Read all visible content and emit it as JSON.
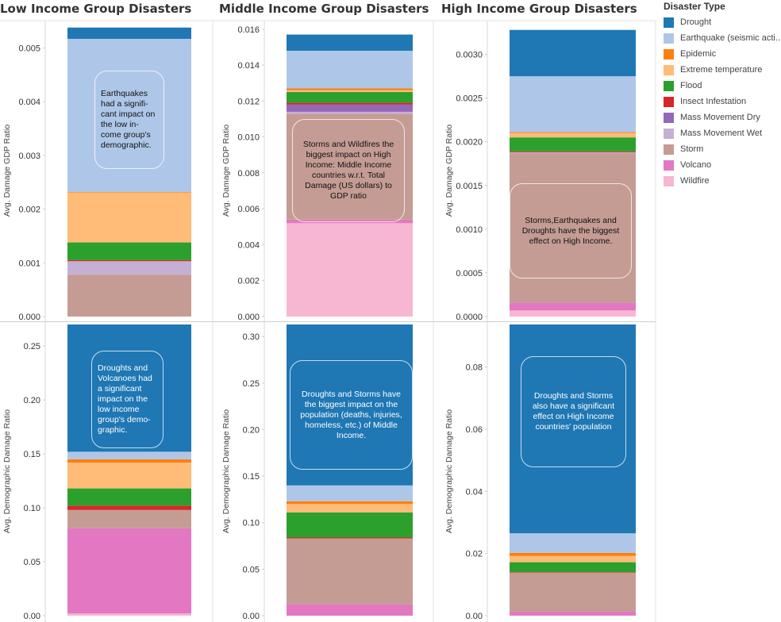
{
  "colors": {
    "Drought": "#1f77b4",
    "Earthquake (seismic acti..": "#aec7e8",
    "Epidemic": "#ff7f0e",
    "Extreme temperature": "#ffbb78",
    "Flood": "#2ca02c",
    "Insect Infestation": "#d62728",
    "Mass Movement Dry": "#9467bd",
    "Mass Movement Wet": "#c5b0d5",
    "Storm": "#c49c94",
    "Volcano": "#e377c2",
    "Wildfire": "#f7b6d2"
  },
  "legend": {
    "title": "Disaster Type",
    "items": [
      "Drought",
      "Earthquake (seismic acti..",
      "Epidemic",
      "Extreme temperature",
      "Flood",
      "Insect Infestation",
      "Mass Movement Dry",
      "Mass Movement Wet",
      "Storm",
      "Volcano",
      "Wildfire"
    ]
  },
  "columns": [
    "Low Income Group Disasters",
    "Middle Income Group Disasters",
    "High Income Group Disasters"
  ],
  "row_labels": [
    "Avg. Damage GDP Ratio",
    "Avg. Demographic Damage Ratio"
  ],
  "annotations": [
    "Earthquakes had a signifi- cant impact on the low in- come group's demographic.",
    "Storms and Wildfires the biggest impact on High Income: Middle Income countries w.r.t. Total Damage (US dollars) to GDP ratio",
    "Storms,Earthquakes and Droughts have the biggest effect on High Income.",
    "Droughts and Volcanoes had a significant impact on the low income group's demo- graphic.",
    "Droughts and Storms have the biggest impact on the population (deaths, injuries, homeless, etc.) of Middle Income.",
    "Droughts  and Storms also have a significant effect on High Income countries' population"
  ],
  "chart_data": [
    {
      "type": "bar",
      "stacked": true,
      "title": "Low Income Group Disasters",
      "ylabel": "Avg. Damage GDP Ratio",
      "ylim": [
        0,
        0.00545
      ],
      "yticks": [
        "0.000",
        "0.001",
        "0.002",
        "0.003",
        "0.004",
        "0.005"
      ],
      "series": [
        {
          "name": "Storm",
          "value": 0.00078
        },
        {
          "name": "Mass Movement Wet",
          "value": 0.00025
        },
        {
          "name": "Insect Infestation",
          "value": 2e-05
        },
        {
          "name": "Flood",
          "value": 0.00033
        },
        {
          "name": "Extreme temperature",
          "value": 0.00093
        },
        {
          "name": "Epidemic",
          "value": 1e-05
        },
        {
          "name": "Earthquake (seismic acti..",
          "value": 0.00285
        },
        {
          "name": "Drought",
          "value": 0.00021
        }
      ]
    },
    {
      "type": "bar",
      "stacked": true,
      "title": "Middle Income Group Disasters",
      "ylabel": "Avg. Damage GDP Ratio",
      "ylim": [
        0,
        0.0163
      ],
      "yticks": [
        "0.000",
        "0.002",
        "0.004",
        "0.006",
        "0.008",
        "0.010",
        "0.012",
        "0.014",
        "0.016"
      ],
      "series": [
        {
          "name": "Wildfire",
          "value": 0.0052
        },
        {
          "name": "Volcano",
          "value": 0.0002
        },
        {
          "name": "Storm",
          "value": 0.0059
        },
        {
          "name": "Mass Movement Wet",
          "value": 0.0001
        },
        {
          "name": "Mass Movement Dry",
          "value": 0.0004
        },
        {
          "name": "Insect Infestation",
          "value": 0.0001
        },
        {
          "name": "Flood",
          "value": 0.0006
        },
        {
          "name": "Extreme temperature",
          "value": 0.0001
        },
        {
          "name": "Epidemic",
          "value": 0.0001
        },
        {
          "name": "Earthquake (seismic acti..",
          "value": 0.0021
        },
        {
          "name": "Drought",
          "value": 0.0009
        }
      ]
    },
    {
      "type": "bar",
      "stacked": true,
      "title": "High Income Group Disasters",
      "ylabel": "Avg. Damage GDP Ratio",
      "ylim": [
        0,
        0.00335
      ],
      "yticks": [
        "0.0000",
        "0.0005",
        "0.0010",
        "0.0015",
        "0.0020",
        "0.0025",
        "0.0030"
      ],
      "series": [
        {
          "name": "Wildfire",
          "value": 7e-05
        },
        {
          "name": "Volcano",
          "value": 9e-05
        },
        {
          "name": "Storm",
          "value": 0.00171
        },
        {
          "name": "Mass Movement Wet",
          "value": 1e-05
        },
        {
          "name": "Insect Infestation",
          "value": 1e-05
        },
        {
          "name": "Flood",
          "value": 0.00016
        },
        {
          "name": "Extreme temperature",
          "value": 5e-05
        },
        {
          "name": "Epidemic",
          "value": 1e-05
        },
        {
          "name": "Earthquake (seismic acti..",
          "value": 0.00064
        },
        {
          "name": "Drought",
          "value": 0.00053
        }
      ]
    },
    {
      "type": "bar",
      "stacked": true,
      "title": "Low Income Group Disasters",
      "ylabel": "Avg. Demographic Damage Ratio",
      "ylim": [
        0,
        0.27
      ],
      "yticks": [
        "0.00",
        "0.05",
        "0.10",
        "0.15",
        "0.20",
        "0.25"
      ],
      "series": [
        {
          "name": "Wildfire",
          "value": 0.002
        },
        {
          "name": "Volcano",
          "value": 0.079
        },
        {
          "name": "Storm",
          "value": 0.017
        },
        {
          "name": "Insect Infestation",
          "value": 0.004
        },
        {
          "name": "Flood",
          "value": 0.016
        },
        {
          "name": "Extreme temperature",
          "value": 0.024
        },
        {
          "name": "Epidemic",
          "value": 0.003
        },
        {
          "name": "Earthquake (seismic acti..",
          "value": 0.007
        },
        {
          "name": "Drought",
          "value": 0.118
        }
      ]
    },
    {
      "type": "bar",
      "stacked": true,
      "title": "Middle Income Group Disasters",
      "ylabel": "Avg. Demographic Damage Ratio",
      "ylim": [
        0,
        0.313
      ],
      "yticks": [
        "0.00",
        "0.05",
        "0.10",
        "0.15",
        "0.20",
        "0.25",
        "0.30"
      ],
      "series": [
        {
          "name": "Volcano",
          "value": 0.012
        },
        {
          "name": "Storm",
          "value": 0.071
        },
        {
          "name": "Insect Infestation",
          "value": 0.001
        },
        {
          "name": "Flood",
          "value": 0.027
        },
        {
          "name": "Extreme temperature",
          "value": 0.009
        },
        {
          "name": "Epidemic",
          "value": 0.003
        },
        {
          "name": "Earthquake (seismic acti..",
          "value": 0.017
        },
        {
          "name": "Drought",
          "value": 0.173
        }
      ]
    },
    {
      "type": "bar",
      "stacked": true,
      "title": "High Income Group Disasters",
      "ylabel": "Avg. Demographic Damage Ratio",
      "ylim": [
        0,
        0.0937
      ],
      "yticks": [
        "0.00",
        "0.02",
        "0.04",
        "0.06",
        "0.08"
      ],
      "series": [
        {
          "name": "Volcano",
          "value": 0.0013
        },
        {
          "name": "Storm",
          "value": 0.0126
        },
        {
          "name": "Insect Infestation",
          "value": 0.0001
        },
        {
          "name": "Flood",
          "value": 0.0032
        },
        {
          "name": "Extreme temperature",
          "value": 0.002
        },
        {
          "name": "Epidemic",
          "value": 0.001
        },
        {
          "name": "Earthquake (seismic acti..",
          "value": 0.0063
        },
        {
          "name": "Drought",
          "value": 0.0672
        }
      ]
    }
  ]
}
